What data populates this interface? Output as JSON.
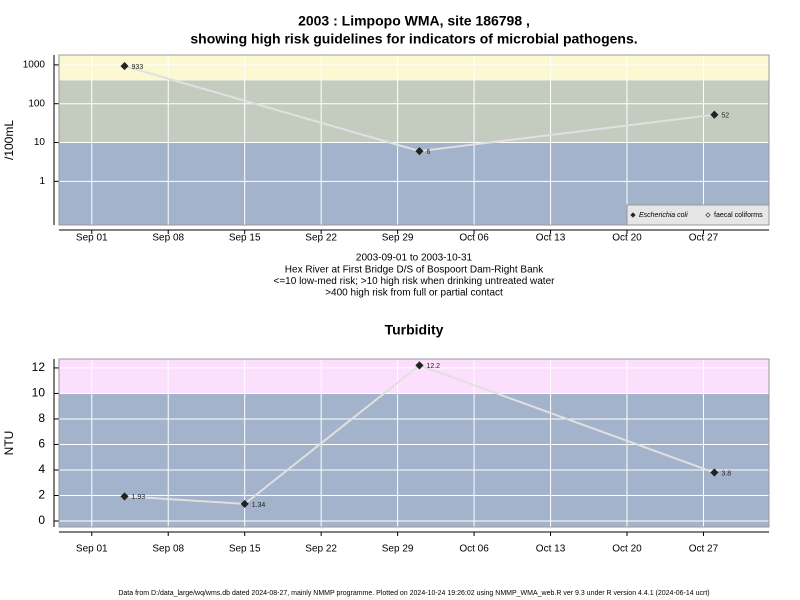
{
  "chart_data": [
    {
      "type": "line",
      "title": "2003 : Limpopo WMA, site 186798 ,",
      "subtitle": "showing high risk guidelines for indicators of microbial pathogens.",
      "ylabel": "/100mL",
      "notes": [
        "2003-09-01 to 2003-10-31",
        "Hex River at First Bridge D/S of Bospoort Dam-Right Bank",
        "<=10 low-med risk; >10 high risk when drinking untreated water",
        ">400 high risk from full or partial contact"
      ],
      "log_y": true,
      "x": [
        "2003-09-04",
        "2003-10-01",
        "2003-10-28"
      ],
      "series": [
        {
          "name": "Escherichia coli",
          "color": "#222222",
          "line_color": "#e0e0e0",
          "marker": "filled-diamond",
          "values": [
            933,
            6,
            52
          ]
        },
        {
          "name": "faecal coliforms",
          "color": "#222222",
          "line_color": "#e0e0e0",
          "marker": "open-diamond",
          "values": [
            null,
            null,
            null
          ]
        }
      ],
      "xlim": [
        "2003-08-29",
        "2003-11-02"
      ],
      "xticks": [
        {
          "value": "2003-09-01",
          "label": "Sep 01"
        },
        {
          "value": "2003-09-08",
          "label": "Sep 08"
        },
        {
          "value": "2003-09-15",
          "label": "Sep 15"
        },
        {
          "value": "2003-09-22",
          "label": "Sep 22"
        },
        {
          "value": "2003-09-29",
          "label": "Sep 29"
        },
        {
          "value": "2003-10-06",
          "label": "Oct 06"
        },
        {
          "value": "2003-10-13",
          "label": "Oct 13"
        },
        {
          "value": "2003-10-20",
          "label": "Oct 20"
        },
        {
          "value": "2003-10-27",
          "label": "Oct 27"
        }
      ],
      "ylim": [
        0.075,
        1800
      ],
      "yticks": [
        1,
        10,
        100,
        1000
      ],
      "thresholds": [
        10,
        400
      ],
      "band_colors": [
        "#a3b3cb",
        "#c4ccc0",
        "#fcf8d2"
      ],
      "grid": true,
      "legend": "bottom-right"
    },
    {
      "type": "line",
      "title": "Turbidity",
      "ylabel": "NTU",
      "x": [
        "2003-09-04",
        "2003-09-15",
        "2003-10-01",
        "2003-10-28"
      ],
      "series": [
        {
          "color": "#222222",
          "line_color": "#e0e0e0",
          "marker": "filled-diamond",
          "values": [
            1.93,
            1.34,
            12.2,
            3.8
          ]
        }
      ],
      "xlim": [
        "2003-08-29",
        "2003-11-02"
      ],
      "xticks": [
        {
          "value": "2003-09-01",
          "label": "Sep 01"
        },
        {
          "value": "2003-09-08",
          "label": "Sep 08"
        },
        {
          "value": "2003-09-15",
          "label": "Sep 15"
        },
        {
          "value": "2003-09-22",
          "label": "Sep 22"
        },
        {
          "value": "2003-09-29",
          "label": "Sep 29"
        },
        {
          "value": "2003-10-06",
          "label": "Oct 06"
        },
        {
          "value": "2003-10-13",
          "label": "Oct 13"
        },
        {
          "value": "2003-10-20",
          "label": "Oct 20"
        },
        {
          "value": "2003-10-27",
          "label": "Oct 27"
        }
      ],
      "ylim": [
        -0.47,
        12.7
      ],
      "yticks": [
        0,
        2,
        4,
        6,
        8,
        10,
        12
      ],
      "thresholds": [
        10
      ],
      "band_colors": [
        "#a3b3cb",
        "#fcdffc"
      ],
      "grid": true
    }
  ],
  "footer": "Data from D:/data_large/wq/wms.db dated 2024-08-27, mainly NMMP programme. Plotted on 2024-10-24 19:26:02 using NMMP_WMA_web.R ver 9.3 under R version 4.4.1 (2024-06-14 ucrt)"
}
